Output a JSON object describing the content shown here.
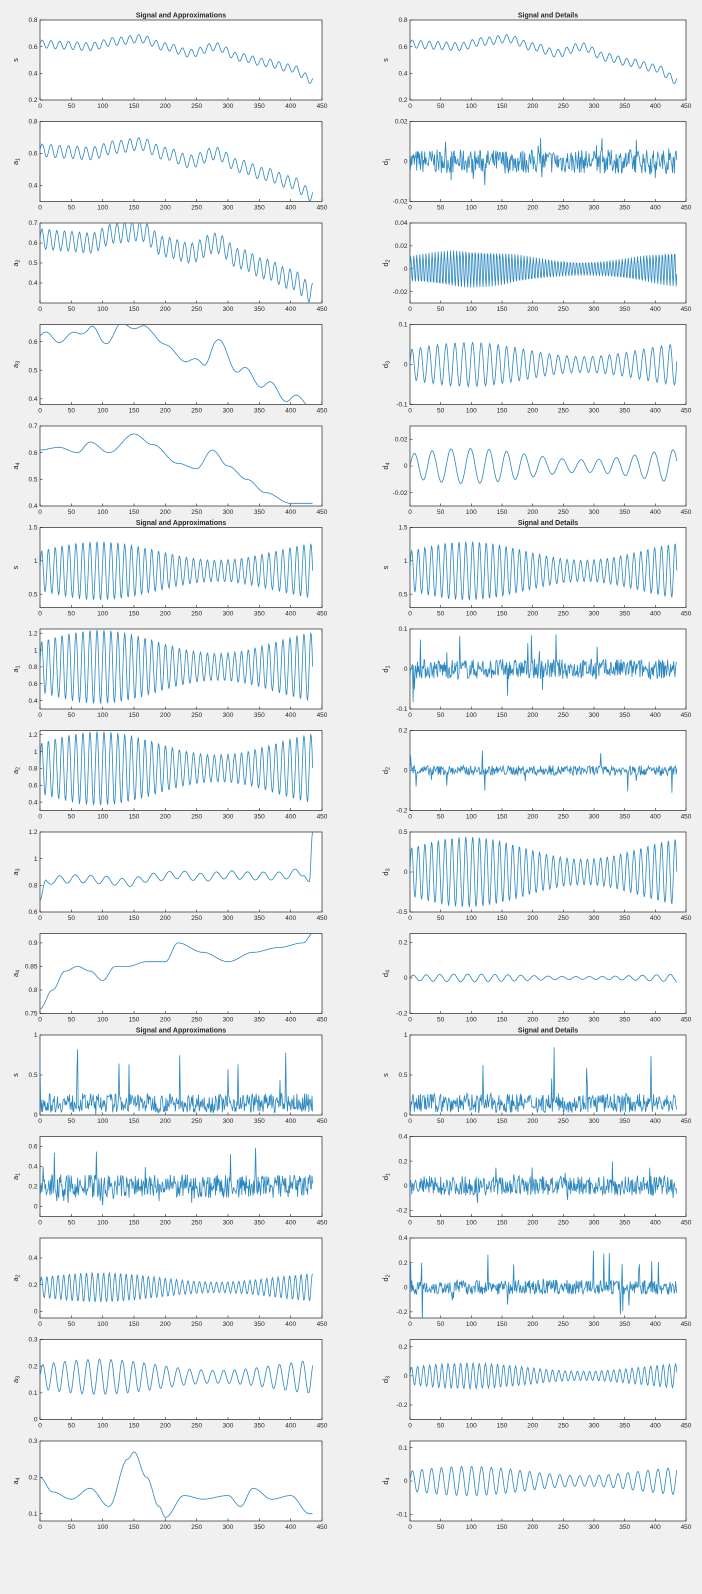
{
  "colors": {
    "background": "#f0f0f0",
    "axes_bg": "#ffffff",
    "line": "#2a87c0",
    "axis": "#262626",
    "text": "#262626"
  },
  "chart_data": [
    {
      "type": "line",
      "group": 1,
      "panel": "left",
      "title": "Signal and Approximations",
      "ylabel": "s",
      "ylim": [
        0.2,
        0.8
      ],
      "yticks": [
        "0.2",
        "0.4",
        "0.6",
        "0.8"
      ],
      "xlim": [
        0,
        450
      ],
      "xticks": [
        0,
        50,
        100,
        150,
        200,
        250,
        300,
        350,
        400,
        450
      ],
      "x": [
        0,
        40,
        80,
        120,
        160,
        200,
        240,
        280,
        320,
        360,
        400,
        435
      ],
      "y": [
        0.62,
        0.61,
        0.6,
        0.64,
        0.66,
        0.6,
        0.55,
        0.6,
        0.52,
        0.48,
        0.44,
        0.35
      ],
      "osc": {
        "amp": 0.03,
        "period": 14
      }
    },
    {
      "type": "line",
      "group": 1,
      "panel": "right",
      "title": "Signal and Details",
      "ylabel": "s",
      "ylim": [
        0.2,
        0.8
      ],
      "yticks": [
        "0.2",
        "0.4",
        "0.6",
        "0.8"
      ],
      "xlim": [
        0,
        450
      ],
      "xticks": [
        0,
        50,
        100,
        150,
        200,
        250,
        300,
        350,
        400,
        450
      ],
      "x": [
        0,
        40,
        80,
        120,
        160,
        200,
        240,
        280,
        320,
        360,
        400,
        435
      ],
      "y": [
        0.62,
        0.61,
        0.6,
        0.64,
        0.66,
        0.6,
        0.55,
        0.6,
        0.52,
        0.48,
        0.44,
        0.35
      ],
      "osc": {
        "amp": 0.03,
        "period": 14
      }
    },
    {
      "type": "line",
      "group": 1,
      "panel": "left",
      "ylabel": "a1",
      "ylim": [
        0.3,
        0.8
      ],
      "yticks": [
        "0.4",
        "0.6",
        "0.8"
      ],
      "xlim": [
        0,
        450
      ],
      "xticks": [
        0,
        50,
        100,
        150,
        200,
        250,
        300,
        350,
        400,
        450
      ],
      "x": [
        0,
        40,
        80,
        120,
        160,
        200,
        240,
        280,
        320,
        360,
        400,
        435
      ],
      "y": [
        0.62,
        0.61,
        0.6,
        0.64,
        0.66,
        0.6,
        0.55,
        0.6,
        0.52,
        0.47,
        0.42,
        0.34
      ],
      "osc": {
        "amp": 0.04,
        "period": 14
      }
    },
    {
      "type": "line",
      "group": 1,
      "panel": "right",
      "ylabel": "d1",
      "ylim": [
        -0.02,
        0.02
      ],
      "yticks": [
        "-0.02",
        "0",
        "0.02"
      ],
      "xlim": [
        0,
        450
      ],
      "xticks": [
        0,
        50,
        100,
        150,
        200,
        250,
        300,
        350,
        400,
        450
      ],
      "noise": {
        "center": 0,
        "amp": 0.006,
        "spike": 0.012
      }
    },
    {
      "type": "line",
      "group": 1,
      "panel": "left",
      "ylabel": "a2",
      "ylim": [
        0.3,
        0.7
      ],
      "yticks": [
        "0.4",
        "0.5",
        "0.6",
        "0.7"
      ],
      "xlim": [
        0,
        450
      ],
      "xticks": [
        0,
        50,
        100,
        150,
        200,
        250,
        300,
        350,
        400,
        450
      ],
      "x": [
        0,
        40,
        80,
        120,
        160,
        200,
        240,
        280,
        320,
        360,
        400,
        435
      ],
      "y": [
        0.62,
        0.61,
        0.6,
        0.65,
        0.66,
        0.58,
        0.55,
        0.6,
        0.52,
        0.47,
        0.42,
        0.35
      ],
      "osc": {
        "amp": 0.05,
        "period": 12
      }
    },
    {
      "type": "line",
      "group": 1,
      "panel": "right",
      "ylabel": "d2",
      "ylim": [
        -0.03,
        0.04
      ],
      "yticks": [
        "-0.02",
        "0",
        "0.02",
        "0.04"
      ],
      "xlim": [
        0,
        450
      ],
      "xticks": [
        0,
        50,
        100,
        150,
        200,
        250,
        300,
        350,
        400,
        450
      ],
      "osc_only": {
        "center": 0,
        "amp": 0.015,
        "period": 5
      }
    },
    {
      "type": "line",
      "group": 1,
      "panel": "left",
      "ylabel": "a3",
      "ylim": [
        0.38,
        0.66
      ],
      "yticks": [
        "0.4",
        "0.5",
        "0.6"
      ],
      "xlim": [
        0,
        450
      ],
      "xticks": [
        0,
        50,
        100,
        150,
        200,
        250,
        300,
        350,
        400,
        450
      ],
      "x": [
        0,
        40,
        80,
        100,
        130,
        150,
        180,
        220,
        260,
        280,
        320,
        360,
        400,
        430
      ],
      "y": [
        0.62,
        0.61,
        0.65,
        0.6,
        0.65,
        0.66,
        0.63,
        0.55,
        0.52,
        0.6,
        0.5,
        0.45,
        0.4,
        0.39
      ],
      "osc": {
        "amp": 0.015,
        "period": 40
      }
    },
    {
      "type": "line",
      "group": 1,
      "panel": "right",
      "ylabel": "d3",
      "ylim": [
        -0.1,
        0.1
      ],
      "yticks": [
        "-0.1",
        "0",
        "0.1"
      ],
      "xlim": [
        0,
        450
      ],
      "xticks": [
        0,
        50,
        100,
        150,
        200,
        250,
        300,
        350,
        400,
        450
      ],
      "osc_only": {
        "center": 0,
        "amp": 0.05,
        "period": 14
      }
    },
    {
      "type": "line",
      "group": 1,
      "panel": "left",
      "ylabel": "a4",
      "ylim": [
        0.4,
        0.7
      ],
      "yticks": [
        "0.4",
        "0.5",
        "0.6",
        "0.7"
      ],
      "xlim": [
        0,
        450
      ],
      "xticks": [
        0,
        50,
        100,
        150,
        200,
        250,
        300,
        350,
        400,
        450
      ],
      "x": [
        0,
        30,
        60,
        80,
        110,
        150,
        180,
        220,
        250,
        275,
        300,
        330,
        360,
        400,
        430
      ],
      "y": [
        0.61,
        0.62,
        0.6,
        0.64,
        0.6,
        0.67,
        0.63,
        0.56,
        0.54,
        0.61,
        0.55,
        0.5,
        0.45,
        0.41,
        0.41
      ],
      "osc": {
        "amp": 0,
        "period": 40
      }
    },
    {
      "type": "line",
      "group": 1,
      "panel": "right",
      "ylabel": "d4",
      "ylim": [
        -0.03,
        0.03
      ],
      "yticks": [
        "-0.02",
        "0",
        "0.02"
      ],
      "xlim": [
        0,
        450
      ],
      "xticks": [
        0,
        50,
        100,
        150,
        200,
        250,
        300,
        350,
        400,
        450
      ],
      "osc_only": {
        "center": 0,
        "amp": 0.012,
        "period": 30
      }
    },
    {
      "type": "line",
      "group": 2,
      "panel": "left",
      "title": "Signal and Approximations",
      "ylabel": "s",
      "ylim": [
        0.3,
        1.5
      ],
      "yticks": [
        "0.5",
        "1",
        "1.5"
      ],
      "xlim": [
        0,
        450
      ],
      "xticks": [
        0,
        50,
        100,
        150,
        200,
        250,
        300,
        350,
        400,
        450
      ],
      "osc_only": {
        "center": 0.85,
        "amp": 0.4,
        "period": 11
      }
    },
    {
      "type": "line",
      "group": 2,
      "panel": "right",
      "title": "Signal and Details",
      "ylabel": "s",
      "ylim": [
        0.3,
        1.5
      ],
      "yticks": [
        "0.5",
        "1",
        "1.5"
      ],
      "xlim": [
        0,
        450
      ],
      "xticks": [
        0,
        50,
        100,
        150,
        200,
        250,
        300,
        350,
        400,
        450
      ],
      "osc_only": {
        "center": 0.85,
        "amp": 0.4,
        "period": 11
      }
    },
    {
      "type": "line",
      "group": 2,
      "panel": "left",
      "ylabel": "a1",
      "ylim": [
        0.3,
        1.25
      ],
      "yticks": [
        "0.4",
        "0.6",
        "0.8",
        "1",
        "1.2"
      ],
      "xlim": [
        0,
        450
      ],
      "xticks": [
        0,
        50,
        100,
        150,
        200,
        250,
        300,
        350,
        400,
        450
      ],
      "osc_only": {
        "center": 0.8,
        "amp": 0.4,
        "period": 11
      }
    },
    {
      "type": "line",
      "group": 2,
      "panel": "right",
      "ylabel": "d1",
      "ylim": [
        -0.1,
        0.1
      ],
      "yticks": [
        "-0.1",
        "0",
        "0.1"
      ],
      "xlim": [
        0,
        450
      ],
      "xticks": [
        0,
        50,
        100,
        150,
        200,
        250,
        300,
        350,
        400,
        450
      ],
      "noise": {
        "center": 0,
        "amp": 0.025,
        "spike": 0.09
      }
    },
    {
      "type": "line",
      "group": 2,
      "panel": "left",
      "ylabel": "a2",
      "ylim": [
        0.3,
        1.25
      ],
      "yticks": [
        "0.4",
        "0.6",
        "0.8",
        "1",
        "1.2"
      ],
      "xlim": [
        0,
        450
      ],
      "xticks": [
        0,
        50,
        100,
        150,
        200,
        250,
        300,
        350,
        400,
        450
      ],
      "osc_only": {
        "center": 0.8,
        "amp": 0.4,
        "period": 11
      }
    },
    {
      "type": "line",
      "group": 2,
      "panel": "right",
      "ylabel": "d2",
      "ylim": [
        -0.2,
        0.2
      ],
      "yticks": [
        "-0.2",
        "0",
        "0.2"
      ],
      "xlim": [
        0,
        450
      ],
      "xticks": [
        0,
        50,
        100,
        150,
        200,
        250,
        300,
        350,
        400,
        450
      ],
      "noise": {
        "center": 0,
        "amp": 0.025,
        "spike": 0.12
      }
    },
    {
      "type": "line",
      "group": 2,
      "panel": "left",
      "ylabel": "a3",
      "ylim": [
        0.6,
        1.2
      ],
      "yticks": [
        "0.6",
        "0.8",
        "1",
        "1.2"
      ],
      "xlim": [
        0,
        450
      ],
      "xticks": [
        0,
        50,
        100,
        150,
        200,
        250,
        300,
        350,
        400,
        450
      ],
      "x": [
        0,
        10,
        20,
        60,
        100,
        140,
        180,
        220,
        260,
        300,
        340,
        380,
        420,
        430,
        435
      ],
      "y": [
        0.68,
        0.82,
        0.84,
        0.85,
        0.84,
        0.82,
        0.86,
        0.88,
        0.86,
        0.88,
        0.87,
        0.87,
        0.9,
        0.8,
        1.18
      ],
      "osc": {
        "amp": 0.03,
        "period": 25
      }
    },
    {
      "type": "line",
      "group": 2,
      "panel": "right",
      "ylabel": "d3",
      "ylim": [
        -0.5,
        0.5
      ],
      "yticks": [
        "-0.5",
        "0",
        "0.5"
      ],
      "xlim": [
        0,
        450
      ],
      "xticks": [
        0,
        50,
        100,
        150,
        200,
        250,
        300,
        350,
        400,
        450
      ],
      "osc_only": {
        "center": 0,
        "amp": 0.4,
        "period": 11
      }
    },
    {
      "type": "line",
      "group": 2,
      "panel": "left",
      "ylabel": "a4",
      "ylim": [
        0.75,
        0.92
      ],
      "yticks": [
        "0.75",
        "0.8",
        "0.85",
        "0.9"
      ],
      "xlim": [
        0,
        450
      ],
      "xticks": [
        0,
        50,
        100,
        150,
        200,
        250,
        300,
        350,
        400,
        450
      ],
      "x": [
        0,
        20,
        40,
        60,
        80,
        100,
        120,
        140,
        170,
        200,
        220,
        260,
        300,
        340,
        380,
        420,
        435
      ],
      "y": [
        0.76,
        0.8,
        0.84,
        0.85,
        0.84,
        0.82,
        0.85,
        0.85,
        0.86,
        0.86,
        0.9,
        0.88,
        0.86,
        0.88,
        0.89,
        0.9,
        0.92
      ],
      "osc": {
        "amp": 0,
        "period": 30
      }
    },
    {
      "type": "line",
      "group": 2,
      "panel": "right",
      "ylabel": "d4",
      "ylim": [
        -0.2,
        0.25
      ],
      "yticks": [
        "-0.2",
        "0",
        "0.2"
      ],
      "xlim": [
        0,
        450
      ],
      "xticks": [
        0,
        50,
        100,
        150,
        200,
        250,
        300,
        350,
        400,
        450
      ],
      "osc_only": {
        "center": 0,
        "amp": 0.02,
        "period": 22
      }
    },
    {
      "type": "line",
      "group": 3,
      "panel": "left",
      "title": "Signal and Approximations",
      "ylabel": "s",
      "ylim": [
        0,
        1
      ],
      "yticks": [
        "0",
        "0.5",
        "1"
      ],
      "xlim": [
        0,
        450
      ],
      "xticks": [
        0,
        50,
        100,
        150,
        200,
        250,
        300,
        350,
        400,
        450
      ],
      "noise": {
        "center": 0.15,
        "amp": 0.12,
        "spike": 0.7
      }
    },
    {
      "type": "line",
      "group": 3,
      "panel": "right",
      "title": "Signal and Details",
      "ylabel": "s",
      "ylim": [
        0,
        1
      ],
      "yticks": [
        "0",
        "0.5",
        "1"
      ],
      "xlim": [
        0,
        450
      ],
      "xticks": [
        0,
        50,
        100,
        150,
        200,
        250,
        300,
        350,
        400,
        450
      ],
      "noise": {
        "center": 0.15,
        "amp": 0.12,
        "spike": 0.7
      }
    },
    {
      "type": "line",
      "group": 3,
      "panel": "left",
      "ylabel": "a1",
      "ylim": [
        -0.1,
        0.7
      ],
      "yticks": [
        "0",
        "0.2",
        "0.4",
        "0.6"
      ],
      "xlim": [
        0,
        450
      ],
      "xticks": [
        0,
        50,
        100,
        150,
        200,
        250,
        300,
        350,
        400,
        450
      ],
      "noise": {
        "center": 0.2,
        "amp": 0.12,
        "spike": 0.4
      }
    },
    {
      "type": "line",
      "group": 3,
      "panel": "right",
      "ylabel": "d1",
      "ylim": [
        -0.25,
        0.4
      ],
      "yticks": [
        "-0.2",
        "0",
        "0.2",
        "0.4"
      ],
      "xlim": [
        0,
        450
      ],
      "xticks": [
        0,
        50,
        100,
        150,
        200,
        250,
        300,
        350,
        400,
        450
      ],
      "noise": {
        "center": 0,
        "amp": 0.08,
        "spike": 0.2
      }
    },
    {
      "type": "line",
      "group": 3,
      "panel": "left",
      "ylabel": "a2",
      "ylim": [
        -0.05,
        0.55
      ],
      "yticks": [
        "0",
        "0.2",
        "0.4"
      ],
      "xlim": [
        0,
        450
      ],
      "xticks": [
        0,
        50,
        100,
        150,
        200,
        250,
        300,
        350,
        400,
        450
      ],
      "osc_only": {
        "center": 0.18,
        "amp": 0.1,
        "period": 9
      }
    },
    {
      "type": "line",
      "group": 3,
      "panel": "right",
      "ylabel": "d2",
      "ylim": [
        -0.25,
        0.4
      ],
      "yticks": [
        "-0.2",
        "0",
        "0.2",
        "0.4"
      ],
      "xlim": [
        0,
        450
      ],
      "xticks": [
        0,
        50,
        100,
        150,
        200,
        250,
        300,
        350,
        400,
        450
      ],
      "noise": {
        "center": 0,
        "amp": 0.06,
        "spike": 0.3
      }
    },
    {
      "type": "line",
      "group": 3,
      "panel": "left",
      "ylabel": "a3",
      "ylim": [
        0,
        0.3
      ],
      "yticks": [
        "0",
        "0.1",
        "0.2",
        "0.3"
      ],
      "xlim": [
        0,
        450
      ],
      "xticks": [
        0,
        50,
        100,
        150,
        200,
        250,
        300,
        350,
        400,
        450
      ],
      "osc_only": {
        "center": 0.16,
        "amp": 0.06,
        "period": 18
      }
    },
    {
      "type": "line",
      "group": 3,
      "panel": "right",
      "ylabel": "d3",
      "ylim": [
        -0.3,
        0.25
      ],
      "yticks": [
        "-0.2",
        "0",
        "0.2"
      ],
      "xlim": [
        0,
        450
      ],
      "xticks": [
        0,
        50,
        100,
        150,
        200,
        250,
        300,
        350,
        400,
        450
      ],
      "osc_only": {
        "center": 0,
        "amp": 0.08,
        "period": 10
      }
    },
    {
      "type": "line",
      "group": 3,
      "panel": "left",
      "ylabel": "a4",
      "ylim": [
        0.08,
        0.3
      ],
      "yticks": [
        "0.1",
        "0.2",
        "0.3"
      ],
      "xlim": [
        0,
        450
      ],
      "xticks": [
        0,
        50,
        100,
        150,
        200,
        250,
        300,
        350,
        400,
        450
      ],
      "x": [
        0,
        20,
        50,
        80,
        110,
        140,
        150,
        170,
        190,
        200,
        230,
        260,
        300,
        320,
        340,
        370,
        400,
        430
      ],
      "y": [
        0.2,
        0.16,
        0.14,
        0.17,
        0.12,
        0.25,
        0.27,
        0.2,
        0.12,
        0.09,
        0.15,
        0.14,
        0.15,
        0.12,
        0.17,
        0.14,
        0.15,
        0.1
      ],
      "osc": {
        "amp": 0,
        "period": 30
      }
    },
    {
      "type": "line",
      "group": 3,
      "panel": "right",
      "ylabel": "d4",
      "ylim": [
        -0.12,
        0.12
      ],
      "yticks": [
        "-0.1",
        "0",
        "0.1"
      ],
      "xlim": [
        0,
        450
      ],
      "xticks": [
        0,
        50,
        100,
        150,
        200,
        250,
        300,
        350,
        400,
        450
      ],
      "osc_only": {
        "center": 0,
        "amp": 0.04,
        "period": 16
      }
    }
  ]
}
